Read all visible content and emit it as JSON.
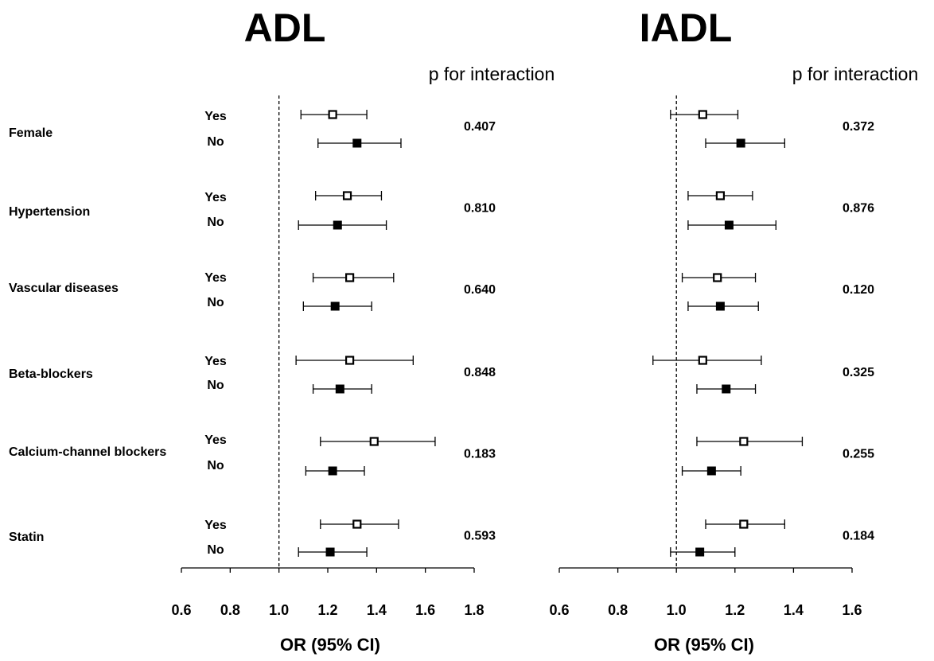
{
  "chart_data": [
    {
      "type": "forest",
      "title": "ADL",
      "xlabel": "OR (95% CI)",
      "xlim": [
        0.6,
        1.8
      ],
      "xticks": [
        "0.6",
        "0.8",
        "1.0",
        "1.2",
        "1.4",
        "1.6",
        "1.8"
      ],
      "reference_line": 1.0,
      "p_header": "p for interaction",
      "legend": {
        "Yes": "open square",
        "No": "filled square"
      },
      "groups": [
        {
          "name": "Female",
          "p": "0.407",
          "rows": [
            {
              "level": "Yes",
              "or": 1.22,
              "lo": 1.09,
              "hi": 1.36
            },
            {
              "level": "No",
              "or": 1.32,
              "lo": 1.16,
              "hi": 1.5
            }
          ]
        },
        {
          "name": "Hypertension",
          "p": "0.810",
          "rows": [
            {
              "level": "Yes",
              "or": 1.28,
              "lo": 1.15,
              "hi": 1.42
            },
            {
              "level": "No",
              "or": 1.24,
              "lo": 1.08,
              "hi": 1.44
            }
          ]
        },
        {
          "name": "Vascular diseases",
          "p": "0.640",
          "rows": [
            {
              "level": "Yes",
              "or": 1.29,
              "lo": 1.14,
              "hi": 1.47
            },
            {
              "level": "No",
              "or": 1.23,
              "lo": 1.1,
              "hi": 1.38
            }
          ]
        },
        {
          "name": "Beta-blockers",
          "p": "0.848",
          "rows": [
            {
              "level": "Yes",
              "or": 1.29,
              "lo": 1.07,
              "hi": 1.55
            },
            {
              "level": "No",
              "or": 1.25,
              "lo": 1.14,
              "hi": 1.38
            }
          ]
        },
        {
          "name": "Calcium-channel blockers",
          "p": "0.183",
          "rows": [
            {
              "level": "Yes",
              "or": 1.39,
              "lo": 1.17,
              "hi": 1.64
            },
            {
              "level": "No",
              "or": 1.22,
              "lo": 1.11,
              "hi": 1.35
            }
          ]
        },
        {
          "name": "Statin",
          "p": "0.593",
          "rows": [
            {
              "level": "Yes",
              "or": 1.32,
              "lo": 1.17,
              "hi": 1.49
            },
            {
              "level": "No",
              "or": 1.21,
              "lo": 1.08,
              "hi": 1.36
            }
          ]
        }
      ]
    },
    {
      "type": "forest",
      "title": "IADL",
      "xlabel": "OR (95% CI)",
      "xlim": [
        0.6,
        1.6
      ],
      "xticks": [
        "0.6",
        "0.8",
        "1.0",
        "1.2",
        "1.4",
        "1.6"
      ],
      "reference_line": 1.0,
      "p_header": "p for interaction",
      "legend": {
        "Yes": "open square",
        "No": "filled square"
      },
      "groups": [
        {
          "name": "Female",
          "p": "0.372",
          "rows": [
            {
              "level": "Yes",
              "or": 1.09,
              "lo": 0.98,
              "hi": 1.21
            },
            {
              "level": "No",
              "or": 1.22,
              "lo": 1.1,
              "hi": 1.37
            }
          ]
        },
        {
          "name": "Hypertension",
          "p": "0.876",
          "rows": [
            {
              "level": "Yes",
              "or": 1.15,
              "lo": 1.04,
              "hi": 1.26
            },
            {
              "level": "No",
              "or": 1.18,
              "lo": 1.04,
              "hi": 1.34
            }
          ]
        },
        {
          "name": "Vascular diseases",
          "p": "0.120",
          "rows": [
            {
              "level": "Yes",
              "or": 1.14,
              "lo": 1.02,
              "hi": 1.27
            },
            {
              "level": "No",
              "or": 1.15,
              "lo": 1.04,
              "hi": 1.28
            }
          ]
        },
        {
          "name": "Beta-blockers",
          "p": "0.325",
          "rows": [
            {
              "level": "Yes",
              "or": 1.09,
              "lo": 0.92,
              "hi": 1.29
            },
            {
              "level": "No",
              "or": 1.17,
              "lo": 1.07,
              "hi": 1.27
            }
          ]
        },
        {
          "name": "Calcium-channel blockers",
          "p": "0.255",
          "rows": [
            {
              "level": "Yes",
              "or": 1.23,
              "lo": 1.07,
              "hi": 1.43
            },
            {
              "level": "No",
              "or": 1.12,
              "lo": 1.02,
              "hi": 1.22
            }
          ]
        },
        {
          "name": "Statin",
          "p": "0.184",
          "rows": [
            {
              "level": "Yes",
              "or": 1.23,
              "lo": 1.1,
              "hi": 1.37
            },
            {
              "level": "No",
              "or": 1.08,
              "lo": 0.98,
              "hi": 1.2
            }
          ]
        }
      ]
    }
  ]
}
